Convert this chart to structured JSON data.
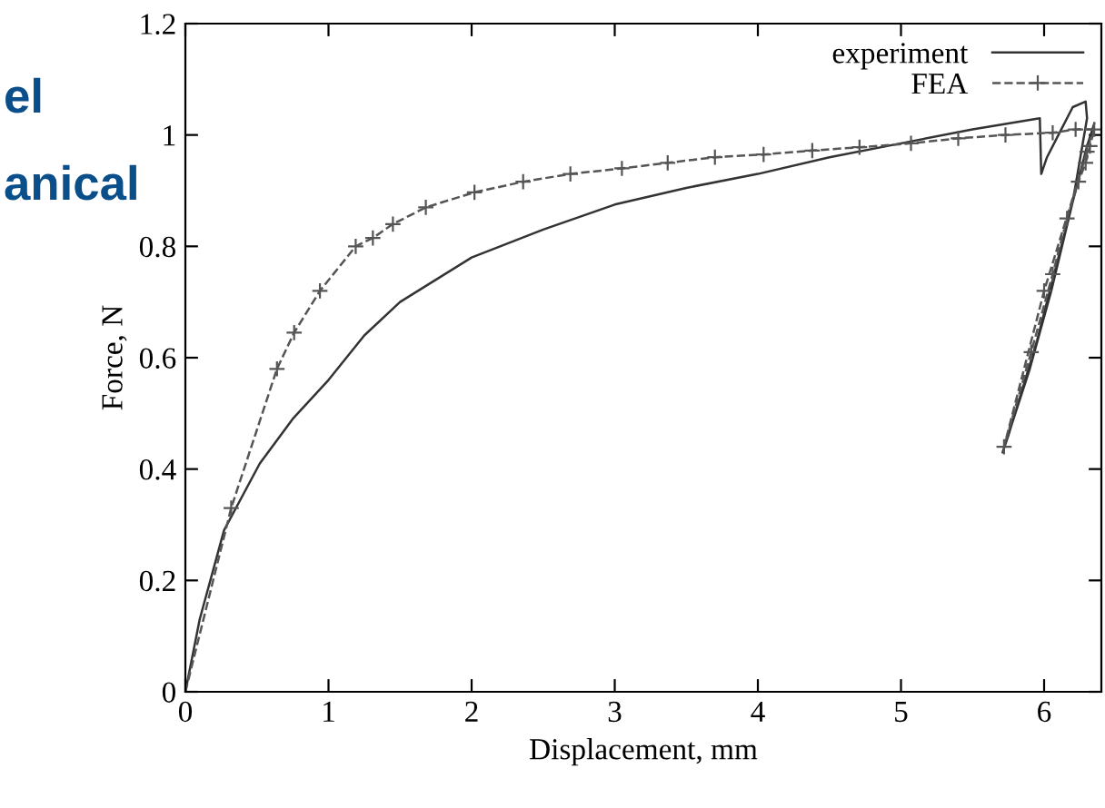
{
  "chart_data": {
    "type": "line",
    "xlabel": "Displacement, mm",
    "ylabel": "Force, N",
    "xlim": [
      0,
      6.4
    ],
    "xticks": [
      0,
      1,
      2,
      3,
      4,
      5,
      6
    ],
    "ylim": [
      0,
      1.2
    ],
    "yticks": [
      0,
      0.2,
      0.4,
      0.6,
      0.8,
      1,
      1.2
    ],
    "grid": false,
    "legend": "top right",
    "annotations": [
      "el",
      "anical"
    ],
    "series": [
      {
        "name": "experiment",
        "color": "#333333",
        "line_style": "solid",
        "marker": "none",
        "x": [
          0,
          0.1,
          0.27,
          0.52,
          0.75,
          1,
          1.25,
          1.5,
          1.75,
          2,
          2.5,
          3,
          3.5,
          4,
          4.5,
          5,
          5.5,
          5.97,
          5.98,
          6.02,
          6.1,
          6.2,
          6.29,
          6.3,
          6.2,
          6.05,
          5.9,
          5.71,
          5.75,
          5.95,
          6.15,
          6.3,
          6.35
        ],
        "values": [
          0,
          0.13,
          0.29,
          0.41,
          0.49,
          0.56,
          0.64,
          0.7,
          0.74,
          0.78,
          0.83,
          0.875,
          0.905,
          0.93,
          0.96,
          0.985,
          1.01,
          1.03,
          0.93,
          0.96,
          1.0,
          1.05,
          1.06,
          1.03,
          0.88,
          0.72,
          0.58,
          0.43,
          0.46,
          0.63,
          0.83,
          0.98,
          1.02
        ]
      },
      {
        "name": "FEA",
        "color": "#555555",
        "line_style": "dashed",
        "marker": "cross",
        "x": [
          0,
          0.32,
          0.64,
          0.76,
          0.94,
          1.19,
          1.31,
          1.45,
          1.68,
          2.02,
          2.36,
          2.69,
          3.05,
          3.37,
          3.7,
          4.04,
          4.38,
          4.71,
          5.07,
          5.4,
          5.73,
          6.06,
          6.22,
          6.35,
          6.32,
          6.29,
          6.24,
          6.16,
          6.06,
          5.91,
          5.72,
          6.0,
          6.3
        ],
        "values": [
          0,
          0.33,
          0.58,
          0.645,
          0.72,
          0.8,
          0.815,
          0.84,
          0.87,
          0.897,
          0.916,
          0.93,
          0.94,
          0.95,
          0.96,
          0.965,
          0.972,
          0.978,
          0.985,
          0.994,
          1.0,
          1.004,
          1.01,
          1.01,
          0.98,
          0.95,
          0.916,
          0.85,
          0.75,
          0.61,
          0.44,
          0.72,
          0.97
        ]
      }
    ]
  }
}
